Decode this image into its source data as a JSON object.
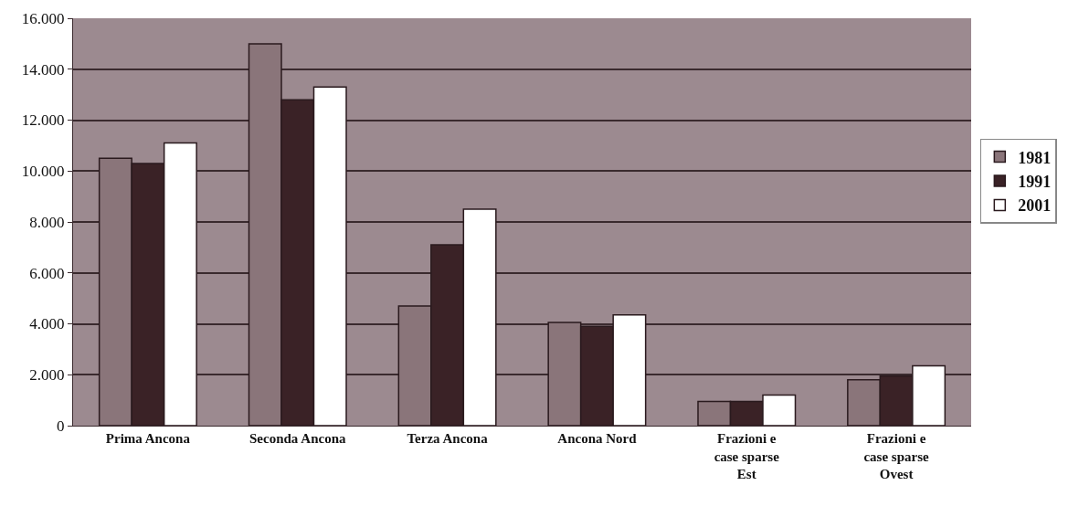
{
  "chart_data": {
    "type": "bar",
    "categories": [
      "Prima Ancona",
      "Seconda Ancona",
      "Terza Ancona",
      "Ancona Nord",
      "Frazioni e case sparse Est",
      "Frazioni e case sparse Ovest"
    ],
    "series": [
      {
        "name": "1981",
        "color": "#8a757a",
        "values": [
          10500,
          15000,
          4700,
          4050,
          950,
          1800
        ]
      },
      {
        "name": "1991",
        "color": "#3a2226",
        "values": [
          10300,
          12800,
          7100,
          3900,
          950,
          1950
        ]
      },
      {
        "name": "2001",
        "color": "#ffffff",
        "values": [
          11100,
          13300,
          8500,
          4350,
          1200,
          2350
        ]
      }
    ],
    "ylim": [
      0,
      16000
    ],
    "yticks": [
      0,
      {
        "value": 2000,
        "label": "2.000"
      },
      {
        "value": 4000,
        "label": "4.000"
      },
      {
        "value": 6000,
        "label": "6.000"
      },
      {
        "value": 8000,
        "label": "8.000"
      },
      {
        "value": 10000,
        "label": "10.000"
      },
      {
        "value": 12000,
        "label": "12.000"
      },
      {
        "value": 14000,
        "label": "14.000"
      },
      {
        "value": 16000,
        "label": "16.000"
      }
    ],
    "grid": "y",
    "legend": "right"
  }
}
